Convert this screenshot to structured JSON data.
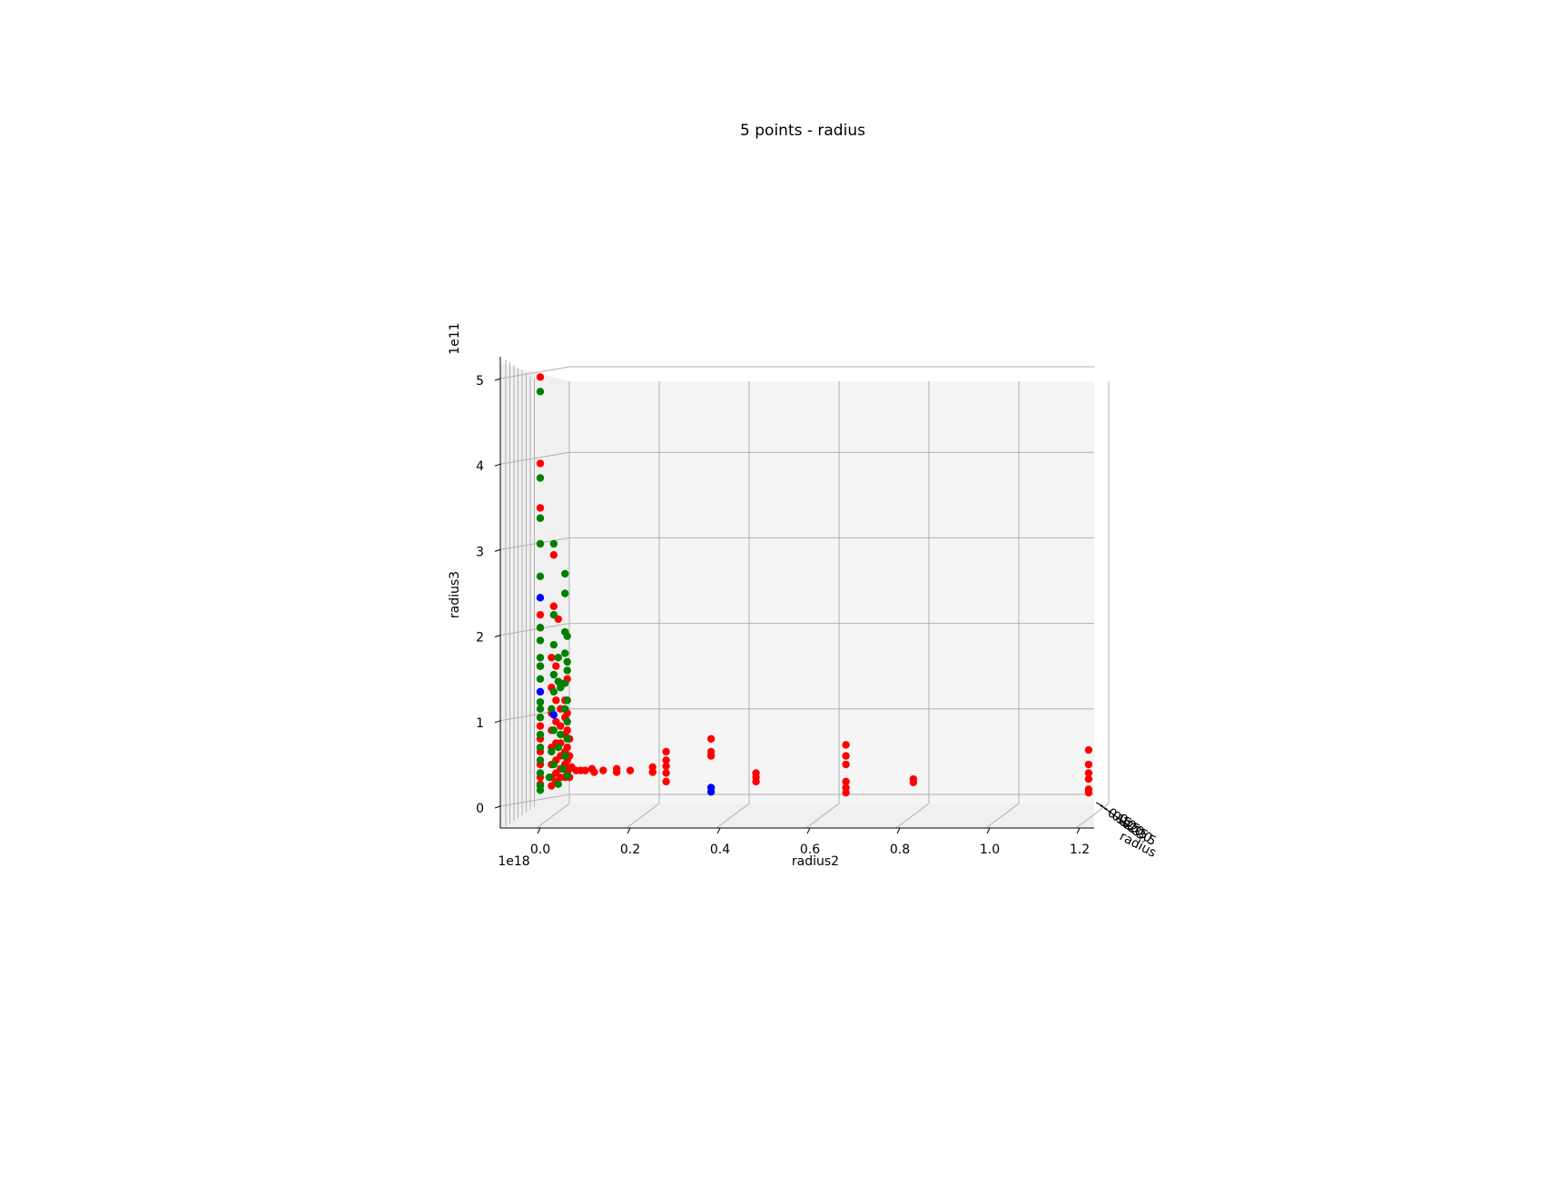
{
  "chart_data": {
    "type": "scatter",
    "title": "5 points - radius",
    "axes": {
      "x": {
        "label": "radius2",
        "offset": "1e18",
        "ticks": [
          "0.0",
          "0.2",
          "0.4",
          "0.6",
          "0.8",
          "1.0",
          "1.2"
        ],
        "range": [
          -0.085,
          1.235
        ]
      },
      "z": {
        "label": "radius3",
        "offset": "1e11",
        "ticks": [
          "0",
          "1",
          "2",
          "3",
          "4",
          "5"
        ],
        "range": [
          -0.3,
          5.15
        ]
      },
      "y": {
        "label": "radius",
        "ticks": [
          "0.0",
          "0.5",
          "1.0",
          "1.5",
          "2.0",
          "2.5",
          "3.0",
          "3.5"
        ],
        "note": "depth axis seen edge-on; labels overlap"
      }
    },
    "grid": true,
    "colors": {
      "red": "#ff0000",
      "green": "#008000",
      "blue": "#0000ff",
      "pane": "#f5f5f5",
      "grid": "#b0b0b0"
    },
    "series": [
      {
        "color": "red",
        "points": [
          [
            0.0,
            4.88
          ],
          [
            0.0,
            3.87
          ],
          [
            0.0,
            3.35
          ],
          [
            0.03,
            2.8
          ],
          [
            0.03,
            2.2
          ],
          [
            0.04,
            2.05
          ],
          [
            0.0,
            2.1
          ],
          [
            0.0,
            1.95
          ],
          [
            0.0,
            1.5
          ],
          [
            0.0,
            1.2
          ],
          [
            0.0,
            0.8
          ],
          [
            0.0,
            0.65
          ],
          [
            0.0,
            0.5
          ],
          [
            0.0,
            0.35
          ],
          [
            0.0,
            0.2
          ],
          [
            0.0,
            0.12
          ],
          [
            0.025,
            1.6
          ],
          [
            0.025,
            1.25
          ],
          [
            0.025,
            0.95
          ],
          [
            0.025,
            0.75
          ],
          [
            0.025,
            0.55
          ],
          [
            0.025,
            0.35
          ],
          [
            0.025,
            0.2
          ],
          [
            0.025,
            0.1
          ],
          [
            0.035,
            1.5
          ],
          [
            0.035,
            1.1
          ],
          [
            0.035,
            0.85
          ],
          [
            0.035,
            0.6
          ],
          [
            0.035,
            0.4
          ],
          [
            0.035,
            0.25
          ],
          [
            0.035,
            0.15
          ],
          [
            0.045,
            1.3
          ],
          [
            0.045,
            1.0
          ],
          [
            0.045,
            0.8
          ],
          [
            0.045,
            0.6
          ],
          [
            0.045,
            0.45
          ],
          [
            0.045,
            0.3
          ],
          [
            0.045,
            0.2
          ],
          [
            0.055,
            1.1
          ],
          [
            0.055,
            0.9
          ],
          [
            0.055,
            0.7
          ],
          [
            0.055,
            0.5
          ],
          [
            0.055,
            0.35
          ],
          [
            0.055,
            0.2
          ],
          [
            0.06,
            1.35
          ],
          [
            0.06,
            0.95
          ],
          [
            0.06,
            0.75
          ],
          [
            0.06,
            0.55
          ],
          [
            0.06,
            0.4
          ],
          [
            0.06,
            0.25
          ],
          [
            0.065,
            0.65
          ],
          [
            0.065,
            0.45
          ],
          [
            0.065,
            0.3
          ],
          [
            0.065,
            0.2
          ],
          [
            0.07,
            0.32
          ],
          [
            0.08,
            0.28
          ],
          [
            0.09,
            0.28
          ],
          [
            0.1,
            0.28
          ],
          [
            0.115,
            0.3
          ],
          [
            0.12,
            0.26
          ],
          [
            0.14,
            0.28
          ],
          [
            0.17,
            0.3
          ],
          [
            0.17,
            0.26
          ],
          [
            0.2,
            0.28
          ],
          [
            0.25,
            0.32
          ],
          [
            0.25,
            0.26
          ],
          [
            0.28,
            0.5
          ],
          [
            0.28,
            0.4
          ],
          [
            0.28,
            0.33
          ],
          [
            0.28,
            0.25
          ],
          [
            0.28,
            0.15
          ],
          [
            0.38,
            0.65
          ],
          [
            0.38,
            0.5
          ],
          [
            0.38,
            0.45
          ],
          [
            0.48,
            0.25
          ],
          [
            0.48,
            0.2
          ],
          [
            0.48,
            0.15
          ],
          [
            0.68,
            0.58
          ],
          [
            0.68,
            0.45
          ],
          [
            0.68,
            0.35
          ],
          [
            0.68,
            0.15
          ],
          [
            0.68,
            0.08
          ],
          [
            0.68,
            0.02
          ],
          [
            0.83,
            0.18
          ],
          [
            0.83,
            0.14
          ],
          [
            1.22,
            0.52
          ],
          [
            1.22,
            0.35
          ],
          [
            1.22,
            0.25
          ],
          [
            1.22,
            0.18
          ],
          [
            1.22,
            0.06
          ],
          [
            1.22,
            0.02
          ]
        ]
      },
      {
        "color": "green",
        "points": [
          [
            0.0,
            4.71
          ],
          [
            0.0,
            3.7
          ],
          [
            0.0,
            3.23
          ],
          [
            0.0,
            2.93
          ],
          [
            0.03,
            2.93
          ],
          [
            0.0,
            2.55
          ],
          [
            0.055,
            2.58
          ],
          [
            0.055,
            2.35
          ],
          [
            0.03,
            2.1
          ],
          [
            0.0,
            1.95
          ],
          [
            0.055,
            1.9
          ],
          [
            0.06,
            1.85
          ],
          [
            0.0,
            1.8
          ],
          [
            0.03,
            1.75
          ],
          [
            0.0,
            1.6
          ],
          [
            0.04,
            1.6
          ],
          [
            0.055,
            1.65
          ],
          [
            0.06,
            1.55
          ],
          [
            0.0,
            1.5
          ],
          [
            0.03,
            1.4
          ],
          [
            0.06,
            1.45
          ],
          [
            0.0,
            1.35
          ],
          [
            0.04,
            1.32
          ],
          [
            0.055,
            1.3
          ],
          [
            0.0,
            1.0
          ],
          [
            0.0,
            1.08
          ],
          [
            0.03,
            1.2
          ],
          [
            0.045,
            1.25
          ],
          [
            0.06,
            1.1
          ],
          [
            0.0,
            0.9
          ],
          [
            0.025,
            1.0
          ],
          [
            0.055,
            1.0
          ],
          [
            0.06,
            0.85
          ],
          [
            0.0,
            0.7
          ],
          [
            0.03,
            0.75
          ],
          [
            0.045,
            0.7
          ],
          [
            0.06,
            0.65
          ],
          [
            0.0,
            0.55
          ],
          [
            0.025,
            0.5
          ],
          [
            0.04,
            0.55
          ],
          [
            0.055,
            0.45
          ],
          [
            0.0,
            0.4
          ],
          [
            0.03,
            0.35
          ],
          [
            0.05,
            0.3
          ],
          [
            0.0,
            0.25
          ],
          [
            0.02,
            0.2
          ],
          [
            0.0,
            0.1
          ],
          [
            0.0,
            0.05
          ],
          [
            0.04,
            0.12
          ],
          [
            0.06,
            0.22
          ]
        ]
      },
      {
        "color": "blue",
        "points": [
          [
            0.0,
            2.3
          ],
          [
            0.0,
            1.2
          ],
          [
            0.03,
            0.93
          ],
          [
            0.38,
            0.08
          ],
          [
            0.38,
            0.03
          ]
        ]
      }
    ]
  }
}
